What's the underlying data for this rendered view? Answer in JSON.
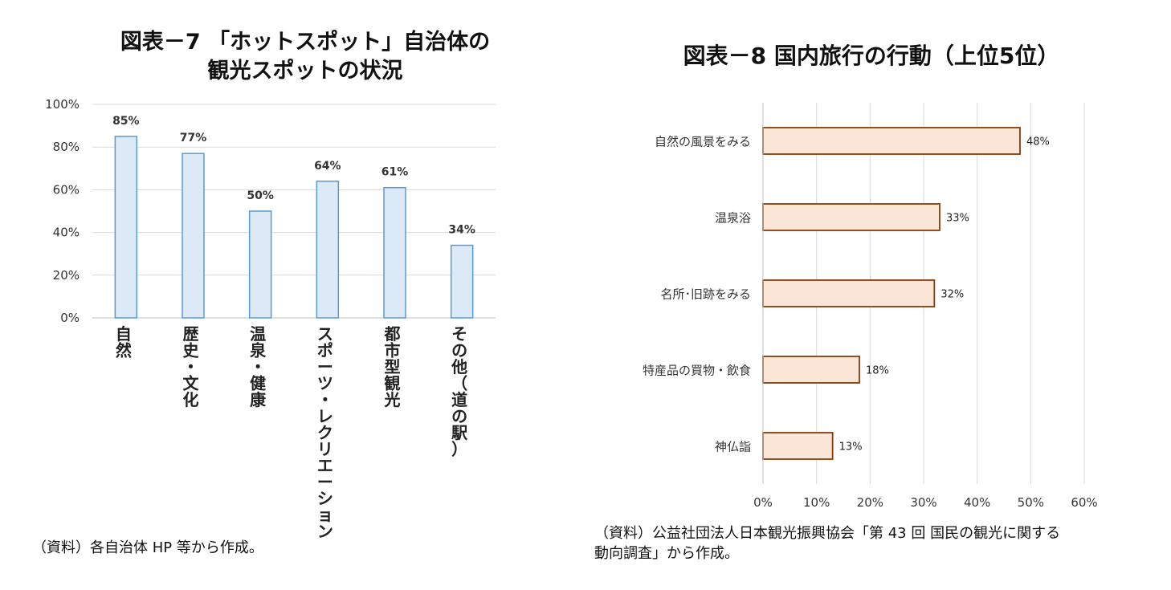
{
  "left": {
    "title_line1": "図表－7 「ホットスポット」自治体の",
    "title_line2": "観光スポットの状況",
    "note": "（資料）各自治体 HP 等から作成。"
  },
  "right": {
    "title": "図表－8 国内旅行の行動（上位5位）",
    "note_line1": "（資料）公益社団法人日本観光振興協会「第 43 回 国民の観光に関する",
    "note_line2": "動向調査」から作成。"
  },
  "colors": {
    "left_bar_fill": "#dce9f6",
    "left_bar_stroke": "#5b9bd5",
    "right_bar_fill": "#fbe5d6",
    "right_bar_stroke": "#843c0c",
    "grid": "#d9d9d9"
  },
  "chart_data": [
    {
      "type": "bar",
      "orientation": "vertical",
      "categories": [
        "自然",
        "歴史・文化",
        "温泉・健康",
        "スポーツ・レクリエーション",
        "都市型観光",
        "その他（道の駅）"
      ],
      "values": [
        85,
        77,
        50,
        64,
        61,
        34
      ],
      "value_labels": [
        "85%",
        "77%",
        "50%",
        "64%",
        "61%",
        "34%"
      ],
      "y_ticks": [
        "100%",
        "80%",
        "60%",
        "40%",
        "20%",
        "0%"
      ],
      "ylim": [
        0,
        100
      ],
      "grid": true
    },
    {
      "type": "bar",
      "orientation": "horizontal",
      "categories": [
        "自然の風景をみる",
        "温泉浴",
        "名所･旧跡をみる",
        "特産品の買物・飲食",
        "神仏詣"
      ],
      "values": [
        48,
        33,
        32,
        18,
        13
      ],
      "value_labels": [
        "48%",
        "33%",
        "32%",
        "18%",
        "13%"
      ],
      "x_ticks": [
        "0%",
        "10%",
        "20%",
        "30%",
        "40%",
        "50%",
        "60%"
      ],
      "xlim": [
        0,
        60
      ],
      "grid": true
    }
  ]
}
